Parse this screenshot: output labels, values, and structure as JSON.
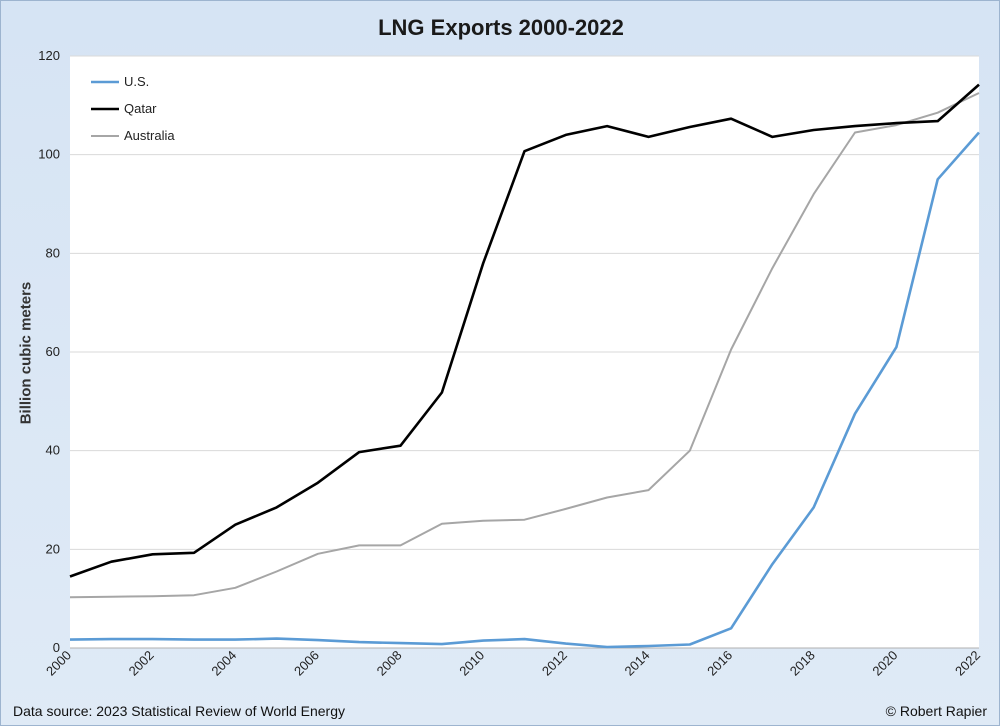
{
  "chart_data": {
    "type": "line",
    "title": "LNG Exports 2000-2022",
    "xlabel": "",
    "ylabel": "Billion cubic meters",
    "ylim": [
      0,
      120
    ],
    "xlim": [
      2000,
      2022
    ],
    "yticks": [
      "0",
      "20",
      "40",
      "60",
      "80",
      "100",
      "120"
    ],
    "xticks": [
      "2000",
      "2002",
      "2004",
      "2006",
      "2008",
      "2010",
      "2012",
      "2014",
      "2016",
      "2018",
      "2020",
      "2022"
    ],
    "grid": "horizontal",
    "legend_placement": "top-left",
    "x": [
      2000,
      2001,
      2002,
      2003,
      2004,
      2005,
      2006,
      2007,
      2008,
      2009,
      2010,
      2011,
      2012,
      2013,
      2014,
      2015,
      2016,
      2017,
      2018,
      2019,
      2020,
      2021,
      2022
    ],
    "series": [
      {
        "name": "U.S.",
        "color": "#5b9bd5",
        "values": [
          1.7,
          1.8,
          1.8,
          1.7,
          1.7,
          1.9,
          1.6,
          1.2,
          1.0,
          0.8,
          1.5,
          1.8,
          0.9,
          0.2,
          0.4,
          0.7,
          4.0,
          17.0,
          28.5,
          47.5,
          61.0,
          95.0,
          104.5
        ]
      },
      {
        "name": "Qatar",
        "color": "#000000",
        "values": [
          14.5,
          17.5,
          19.0,
          19.3,
          25.0,
          28.5,
          33.5,
          39.7,
          41.0,
          51.8,
          78.0,
          100.7,
          104.0,
          105.8,
          103.6,
          105.6,
          107.3,
          103.6,
          105.0,
          105.8,
          106.4,
          106.8,
          114.2
        ]
      },
      {
        "name": "Australia",
        "color": "#a6a6a6",
        "values": [
          10.3,
          10.4,
          10.5,
          10.7,
          12.2,
          15.5,
          19.1,
          20.8,
          20.8,
          25.2,
          25.8,
          26.0,
          28.2,
          30.5,
          32.0,
          40.0,
          60.5,
          77.0,
          92.0,
          104.5,
          106.0,
          108.5,
          112.5
        ]
      }
    ]
  },
  "footer": {
    "source": "Data source: 2023 Statistical Review of World Energy",
    "credit": "© Robert Rapier"
  }
}
